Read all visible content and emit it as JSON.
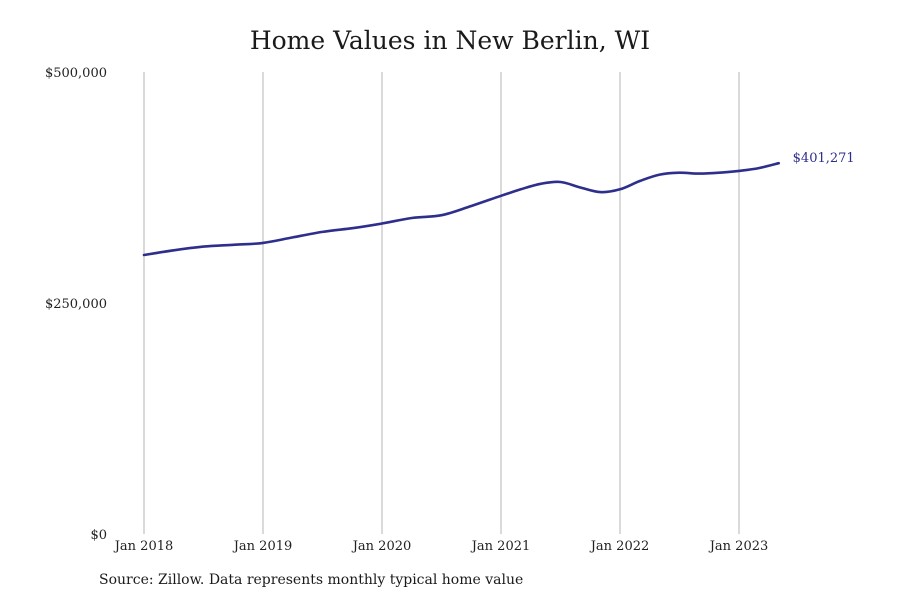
{
  "chart_data": {
    "type": "line",
    "title": "Home Values in New Berlin, WI",
    "xlabel": "",
    "ylabel": "",
    "x_ticks": [
      "Jan 2018",
      "Jan 2019",
      "Jan 2020",
      "Jan 2021",
      "Jan 2022",
      "Jan 2023"
    ],
    "y_ticks": [
      "$0",
      "$250,000",
      "$500,000"
    ],
    "ylim": [
      0,
      500000
    ],
    "xlim": [
      "2018-01",
      "2023-05"
    ],
    "grid": "vertical",
    "legend": "none",
    "line_color": "#2e2e8c",
    "series": [
      {
        "x": [
          "2018-01",
          "2018-04",
          "2018-07",
          "2018-10",
          "2019-01",
          "2019-04",
          "2019-07",
          "2019-10",
          "2020-01",
          "2020-04",
          "2020-07",
          "2020-10",
          "2021-01",
          "2021-03",
          "2021-05",
          "2021-07",
          "2021-09",
          "2021-11",
          "2022-01",
          "2022-03",
          "2022-05",
          "2022-07",
          "2022-09",
          "2022-11",
          "2023-01",
          "2023-03",
          "2023-05"
        ],
        "values": [
          302000,
          307000,
          311000,
          313000,
          315000,
          321000,
          327000,
          331000,
          336000,
          342000,
          345000,
          355000,
          366000,
          373000,
          379000,
          381000,
          375000,
          370000,
          373000,
          382000,
          389000,
          391000,
          390000,
          391000,
          393000,
          396000,
          401271
        ]
      }
    ],
    "end_label": "$401,271"
  },
  "footer": {
    "source": "Source: Zillow. Data represents monthly typical home value"
  }
}
